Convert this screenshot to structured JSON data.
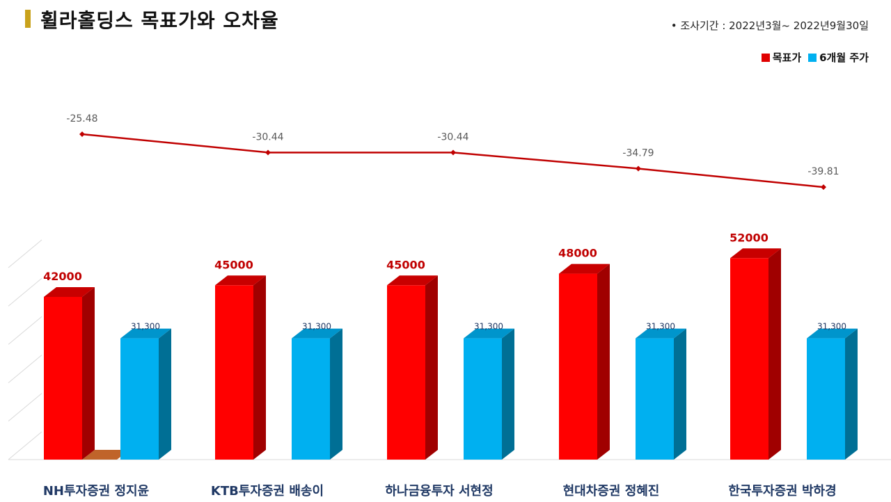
{
  "header": {
    "title": "휠라홀딩스 목표가와 오차율",
    "period": "• 조사기간 : 2022년3월~ 2022년9월30일"
  },
  "legend": [
    {
      "label": "목표가",
      "color": "#e00000"
    },
    {
      "label": "6개월 주가",
      "color": "#00b0f0"
    }
  ],
  "chart_data": {
    "type": "bar",
    "categories": [
      "NH투자증권 정지윤",
      "KTB투자증권 배송이",
      "하나금융투자 서현정",
      "현대차증권 정혜진",
      "한국투자증권 박하경"
    ],
    "series": [
      {
        "name": "목표가",
        "values": [
          42000,
          45000,
          45000,
          48000,
          52000
        ],
        "labels": [
          "42000",
          "45000",
          "45000",
          "48000",
          "52000"
        ],
        "color": "#ff0000"
      },
      {
        "name": "6개월 주가",
        "values": [
          31300,
          31300,
          31300,
          31300,
          31300
        ],
        "labels": [
          "31,300",
          "31,300",
          "31,300",
          "31,300",
          "31,300"
        ],
        "color": "#00b0f0"
      }
    ],
    "line_series": {
      "values": [
        -25.48,
        -30.44,
        -30.44,
        -34.79,
        -39.81
      ],
      "labels": [
        "-25.48",
        "-30.44",
        "-30.44",
        "-34.79",
        "-39.81"
      ],
      "color": "#c00000"
    },
    "grid": true
  }
}
